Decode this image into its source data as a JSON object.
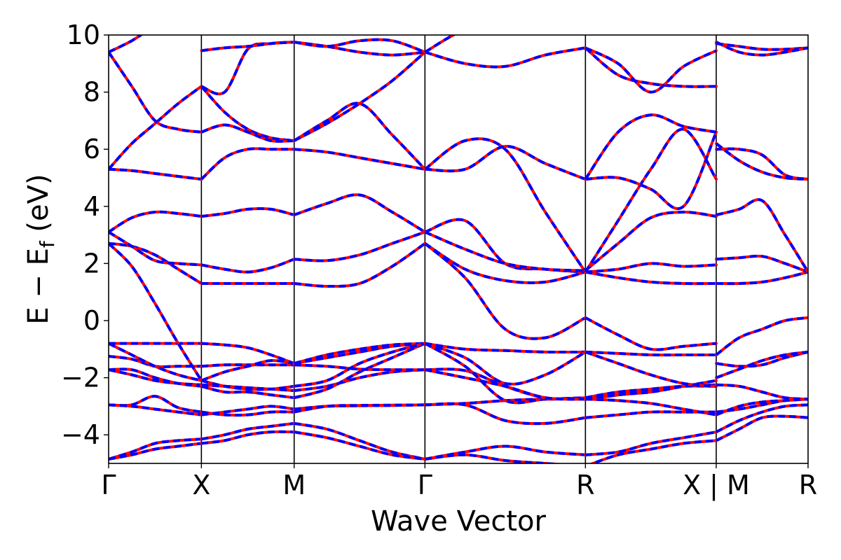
{
  "chart_data": {
    "type": "line",
    "title": "",
    "xlabel": "Wave Vector",
    "ylabel_main": "E − E",
    "ylabel_sub": "f",
    "ylabel_unit": " (eV)",
    "ylim": [
      -5,
      10
    ],
    "yticks": [
      -4,
      -2,
      0,
      2,
      4,
      6,
      8,
      10
    ],
    "ytick_labels": [
      "−4",
      "−2",
      "0",
      "2",
      "4",
      "6",
      "8",
      "10"
    ],
    "xlim": [
      0,
      7.54
    ],
    "kpoints": [
      {
        "label": "Γ",
        "x": 0.0
      },
      {
        "label": "X",
        "x": 1.0
      },
      {
        "label": "M",
        "x": 2.0
      },
      {
        "label": "Γ",
        "x": 3.41
      },
      {
        "label": "R",
        "x": 5.14
      },
      {
        "label": "X | M",
        "x": 6.55
      },
      {
        "label": "R",
        "x": 7.54
      }
    ],
    "series_colors": {
      "base": "#ff0000",
      "overlay": "#0000ff"
    },
    "segments": [
      {
        "x0": 0.0,
        "x1": 1.0,
        "bands": [
          [
            -4.85,
            -4.6,
            -4.3,
            -4.2,
            -4.15
          ],
          [
            -4.85,
            -4.7,
            -4.5,
            -4.4,
            -4.3
          ],
          [
            -2.95,
            -2.95,
            -2.65,
            -3.05,
            -3.2
          ],
          [
            -2.95,
            -3.0,
            -3.1,
            -3.2,
            -3.3
          ],
          [
            -1.72,
            -1.9,
            -2.1,
            -2.2,
            -2.25
          ],
          [
            -1.72,
            -1.72,
            -2.0,
            -2.2,
            -2.3
          ],
          [
            -1.25,
            -1.35,
            -1.6,
            -1.6,
            -1.6
          ],
          [
            -0.8,
            -1.2,
            -1.6,
            -1.9,
            -2.1
          ],
          [
            -0.8,
            -0.8,
            -0.8,
            -0.8,
            -0.8
          ],
          [
            2.7,
            1.9,
            0.6,
            -0.8,
            -2.1
          ],
          [
            2.7,
            2.6,
            2.3,
            1.8,
            1.3
          ],
          [
            3.1,
            2.6,
            2.1,
            2.0,
            1.95
          ],
          [
            3.1,
            3.6,
            3.8,
            3.75,
            3.65
          ],
          [
            5.3,
            5.25,
            5.15,
            5.05,
            4.95
          ],
          [
            5.3,
            6.2,
            6.9,
            7.6,
            8.2
          ],
          [
            9.4,
            8.2,
            7.0,
            6.7,
            6.6
          ],
          [
            9.4,
            9.8,
            10.3,
            10.5,
            10.6
          ]
        ]
      },
      {
        "x0": 1.0,
        "x1": 2.0,
        "bands": [
          [
            -4.15,
            -4.0,
            -3.8,
            -3.7,
            -3.6
          ],
          [
            -4.3,
            -4.2,
            -4.0,
            -3.9,
            -3.9
          ],
          [
            -3.2,
            -3.3,
            -3.3,
            -3.2,
            -3.2
          ],
          [
            -3.3,
            -3.2,
            -3.1,
            -3.0,
            -3.1
          ],
          [
            -2.25,
            -2.3,
            -2.35,
            -2.4,
            -2.45
          ],
          [
            -2.3,
            -2.5,
            -2.5,
            -2.6,
            -2.7
          ],
          [
            -1.6,
            -1.55,
            -1.55,
            -1.55,
            -1.55
          ],
          [
            -2.1,
            -1.8,
            -1.6,
            -1.4,
            -1.5
          ],
          [
            -0.8,
            -0.85,
            -0.95,
            -1.2,
            -1.5
          ],
          [
            -2.1,
            -2.3,
            -2.4,
            -2.4,
            -2.3
          ],
          [
            1.3,
            1.3,
            1.3,
            1.3,
            1.3
          ],
          [
            1.95,
            1.8,
            1.7,
            1.85,
            2.15
          ],
          [
            3.65,
            3.75,
            3.9,
            3.9,
            3.7
          ],
          [
            4.95,
            5.7,
            6.0,
            6.0,
            6.0
          ],
          [
            8.2,
            7.3,
            6.7,
            6.4,
            6.3
          ],
          [
            6.6,
            6.85,
            6.6,
            6.3,
            6.3
          ],
          [
            8.2,
            8.0,
            9.5,
            9.7,
            9.75
          ],
          [
            9.45,
            9.55,
            9.6,
            9.7,
            9.75
          ]
        ]
      },
      {
        "x0": 2.0,
        "x1": 3.41,
        "bands": [
          [
            -3.6,
            -3.8,
            -4.2,
            -4.6,
            -4.85
          ],
          [
            -3.9,
            -4.1,
            -4.4,
            -4.7,
            -4.85
          ],
          [
            -3.2,
            -3.0,
            -2.97,
            -2.96,
            -2.95
          ],
          [
            -3.1,
            -3.0,
            -2.98,
            -2.97,
            -2.95
          ],
          [
            -2.45,
            -2.3,
            -2.0,
            -1.8,
            -1.72
          ],
          [
            -2.7,
            -2.4,
            -1.8,
            -1.3,
            -0.8
          ],
          [
            -1.55,
            -1.6,
            -1.7,
            -1.72,
            -1.72
          ],
          [
            -1.5,
            -1.3,
            -1.1,
            -0.9,
            -0.8
          ],
          [
            -1.5,
            -1.2,
            -1.0,
            -0.85,
            -0.8
          ],
          [
            -2.3,
            -2.1,
            -1.5,
            -1.1,
            -0.8
          ],
          [
            1.3,
            1.2,
            1.3,
            1.9,
            2.7
          ],
          [
            2.15,
            2.1,
            2.3,
            2.7,
            3.1
          ],
          [
            3.7,
            4.1,
            4.4,
            3.8,
            3.1
          ],
          [
            6.0,
            5.9,
            5.7,
            5.5,
            5.3
          ],
          [
            6.3,
            6.9,
            7.6,
            8.4,
            9.4
          ],
          [
            6.3,
            7.0,
            7.6,
            6.5,
            5.3
          ],
          [
            9.75,
            9.6,
            9.4,
            9.3,
            9.4
          ],
          [
            9.75,
            9.6,
            9.8,
            9.8,
            9.4
          ]
        ]
      },
      {
        "x0": 3.41,
        "x1": 5.14,
        "bands": [
          [
            -4.85,
            -4.6,
            -4.4,
            -4.6,
            -4.7
          ],
          [
            -4.85,
            -4.7,
            -4.9,
            -5.0,
            -5.1
          ],
          [
            -2.95,
            -2.9,
            -2.8,
            -2.75,
            -2.75
          ],
          [
            -2.95,
            -2.95,
            -3.5,
            -3.6,
            -3.4
          ],
          [
            -1.72,
            -1.75,
            -2.3,
            -2.7,
            -2.75
          ],
          [
            -0.8,
            -1.6,
            -2.8,
            -2.75,
            -2.7
          ],
          [
            -1.72,
            -2.0,
            -2.3,
            -2.7,
            -2.75
          ],
          [
            -0.8,
            -1.0,
            -1.05,
            -1.1,
            -1.1
          ],
          [
            -0.8,
            -1.3,
            -2.2,
            -1.9,
            -1.1
          ],
          [
            2.7,
            1.5,
            -0.3,
            -0.6,
            0.1
          ],
          [
            2.7,
            1.8,
            1.4,
            1.35,
            1.7
          ],
          [
            3.1,
            3.5,
            2.0,
            1.8,
            1.7
          ],
          [
            3.1,
            2.5,
            2.0,
            1.8,
            1.75
          ],
          [
            5.3,
            6.3,
            6.0,
            3.8,
            1.7
          ],
          [
            5.3,
            5.3,
            6.1,
            5.5,
            4.95
          ],
          [
            9.4,
            9.0,
            8.9,
            9.3,
            9.55
          ],
          [
            9.4,
            10.2,
            10.5,
            10.4,
            10.6
          ]
        ]
      },
      {
        "x0": 5.14,
        "x1": 6.55,
        "bands": [
          [
            -4.7,
            -4.6,
            -4.3,
            -4.1,
            -3.9
          ],
          [
            -5.1,
            -4.7,
            -4.5,
            -4.3,
            -4.2
          ],
          [
            -2.75,
            -2.8,
            -2.9,
            -3.1,
            -3.3
          ],
          [
            -3.4,
            -3.3,
            -3.2,
            -3.2,
            -3.2
          ],
          [
            -2.75,
            -2.6,
            -2.4,
            -2.3,
            -2.25
          ],
          [
            -2.7,
            -2.5,
            -2.4,
            -2.3,
            -2.3
          ],
          [
            -2.75,
            -2.6,
            -2.5,
            -2.3,
            -2.1
          ],
          [
            -1.1,
            -1.15,
            -1.2,
            -1.2,
            -1.2
          ],
          [
            -1.1,
            -1.5,
            -1.9,
            -2.2,
            -2.3
          ],
          [
            0.1,
            -0.5,
            -1.0,
            -0.9,
            -0.8
          ],
          [
            1.7,
            1.5,
            1.35,
            1.3,
            1.3
          ],
          [
            1.7,
            1.8,
            2.0,
            1.9,
            1.95
          ],
          [
            1.75,
            2.7,
            3.6,
            3.8,
            3.65
          ],
          [
            1.7,
            3.5,
            5.3,
            6.7,
            4.95
          ],
          [
            4.95,
            5.0,
            4.6,
            4.0,
            6.6
          ],
          [
            4.95,
            6.6,
            7.2,
            6.8,
            6.6
          ],
          [
            9.55,
            8.6,
            8.3,
            8.2,
            8.2
          ],
          [
            9.55,
            9.0,
            8.0,
            8.9,
            9.45
          ]
        ]
      },
      {
        "x0": 6.55,
        "x1": 7.54,
        "bands": [
          [
            -3.9,
            -3.5,
            -3.2,
            -3.0,
            -2.95
          ],
          [
            -4.2,
            -3.8,
            -3.4,
            -3.35,
            -3.4
          ],
          [
            -3.3,
            -3.0,
            -2.85,
            -2.8,
            -2.75
          ],
          [
            -3.2,
            -3.1,
            -2.95,
            -2.8,
            -2.75
          ],
          [
            -2.25,
            -2.3,
            -2.5,
            -2.7,
            -2.75
          ],
          [
            -1.5,
            -1.6,
            -1.55,
            -1.3,
            -1.1
          ],
          [
            -2.0,
            -1.7,
            -1.4,
            -1.2,
            -1.1
          ],
          [
            -1.2,
            -0.6,
            -0.3,
            0.0,
            0.1
          ],
          [
            1.3,
            1.3,
            1.35,
            1.5,
            1.7
          ],
          [
            2.15,
            2.2,
            2.25,
            2.0,
            1.7
          ],
          [
            3.7,
            3.9,
            4.2,
            3.0,
            1.7
          ],
          [
            6.0,
            6.0,
            5.8,
            5.1,
            4.95
          ],
          [
            6.2,
            5.6,
            5.2,
            5.0,
            4.95
          ],
          [
            9.7,
            9.6,
            9.5,
            9.5,
            9.55
          ],
          [
            9.75,
            9.4,
            9.3,
            9.4,
            9.55
          ]
        ]
      }
    ]
  }
}
